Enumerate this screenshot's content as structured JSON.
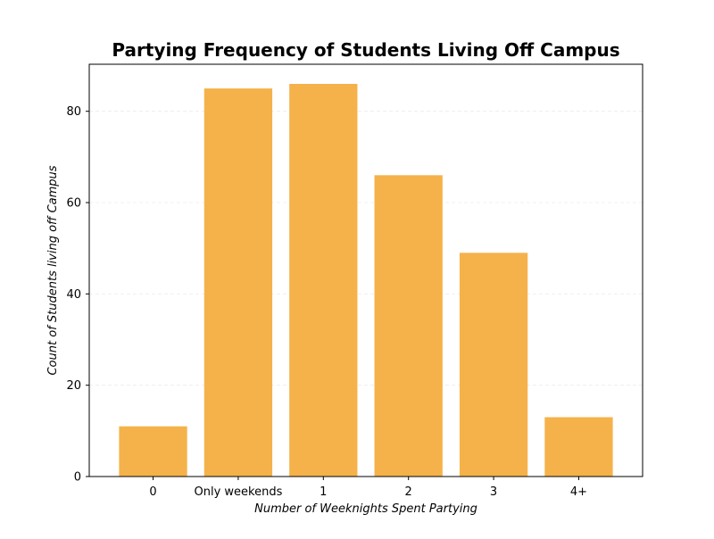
{
  "chart_data": {
    "type": "bar",
    "title": "Partying Frequency of Students Living Off Campus",
    "xlabel": "Number of Weeknights Spent Partying",
    "ylabel": "Count of Students living off Campus",
    "categories": [
      "0",
      "Only weekends",
      "1",
      "2",
      "3",
      "4+"
    ],
    "values": [
      11,
      85,
      86,
      66,
      49,
      13
    ],
    "ylim": [
      0,
      90.3
    ],
    "yticks": [
      0,
      20,
      40,
      60,
      80
    ],
    "grid": "y-dashed",
    "legend": "none",
    "bar_color": "#F5B24A"
  }
}
